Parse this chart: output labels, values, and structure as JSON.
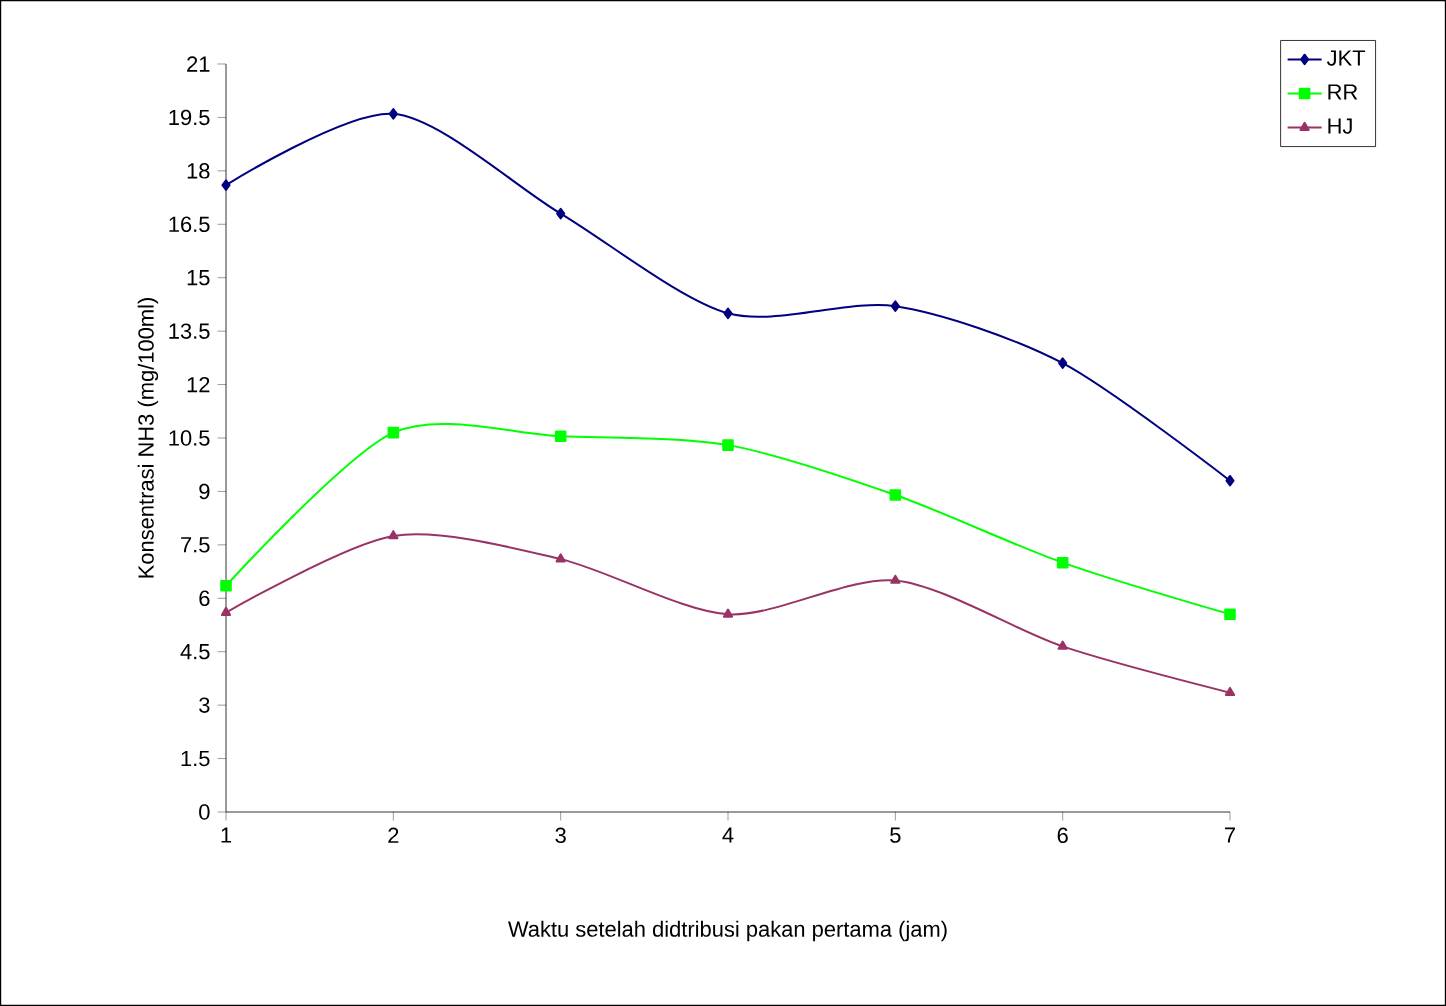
{
  "chart_data": {
    "type": "line",
    "xlabel": "Waktu setelah didtribusi pakan pertama (jam)",
    "ylabel": "Konsentrasi NH3 (mg/100ml)",
    "x": [
      1,
      2,
      3,
      4,
      5,
      6,
      7
    ],
    "xlim": [
      1,
      7
    ],
    "xticks": [
      1,
      2,
      3,
      4,
      5,
      6,
      7
    ],
    "ylim": [
      0,
      21
    ],
    "yticks": [
      0,
      1.5,
      3,
      4.5,
      6,
      7.5,
      9,
      10.5,
      12,
      13.5,
      15,
      16.5,
      18,
      19.5,
      21
    ],
    "series": [
      {
        "name": "JKT",
        "color": "#000080",
        "marker": "diamond",
        "values": [
          17.6,
          19.6,
          16.8,
          14.0,
          14.2,
          12.6,
          9.3
        ]
      },
      {
        "name": "RR",
        "color": "#00ff00",
        "marker": "square",
        "values": [
          6.35,
          10.65,
          10.55,
          10.3,
          8.9,
          7.0,
          5.55
        ]
      },
      {
        "name": "HJ",
        "color": "#993366",
        "marker": "triangle",
        "values": [
          5.6,
          7.75,
          7.1,
          5.55,
          6.5,
          4.65,
          3.35
        ]
      }
    ],
    "legend": "top right",
    "grid": false
  }
}
